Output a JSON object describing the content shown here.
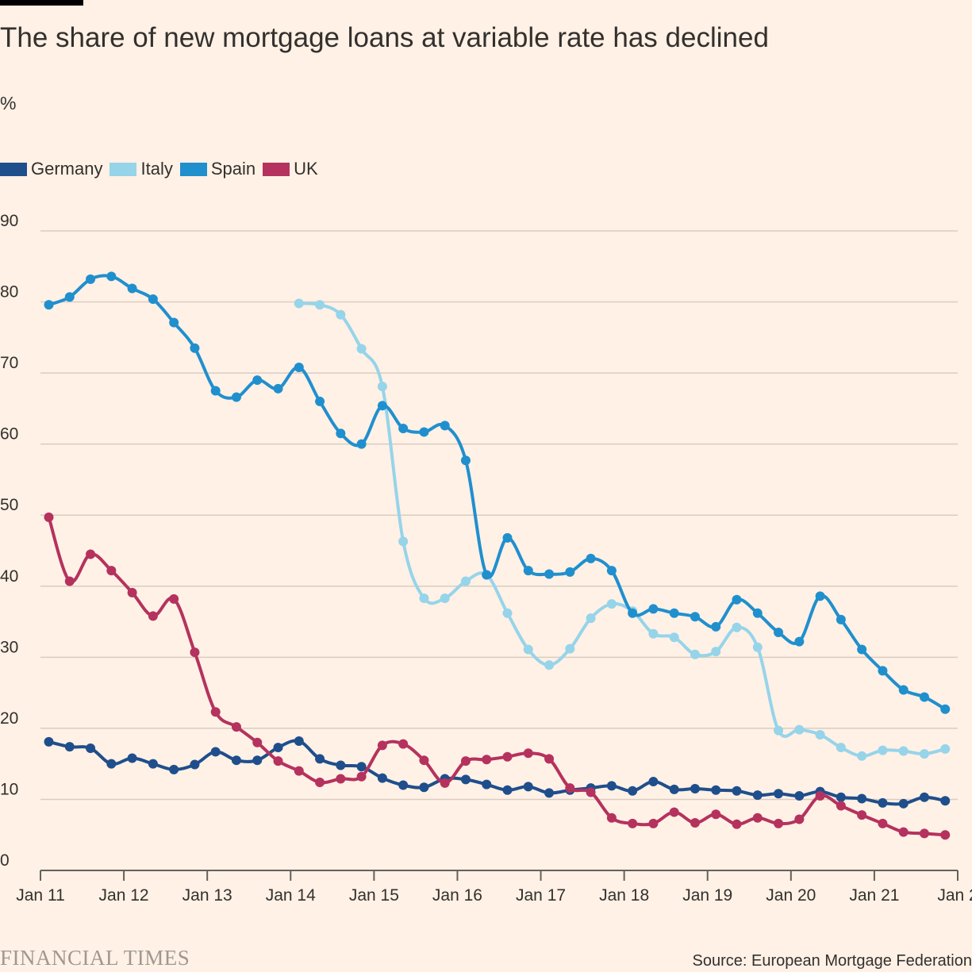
{
  "header": {
    "title": "The share of new mortgage loans at variable rate has declined",
    "unit": "%"
  },
  "footer": {
    "brand": "FINANCIAL TIMES",
    "source": "Source: European Mortgage Federation"
  },
  "colors": {
    "background": "#FFF1E5",
    "grid": "#D9CCC1",
    "axis": "#66605C",
    "text": "#33302E"
  },
  "chart_data": {
    "type": "line",
    "title": "The share of new mortgage loans at variable rate has declined",
    "ylabel": "%",
    "xlabel": "",
    "ylim": [
      0,
      90
    ],
    "yticks": [
      0,
      10,
      20,
      30,
      40,
      50,
      60,
      70,
      80,
      90
    ],
    "xlim": [
      2011.0,
      2022.0
    ],
    "xticks": [
      {
        "value": 2011,
        "label": "Jan 11"
      },
      {
        "value": 2012,
        "label": "Jan 12"
      },
      {
        "value": 2013,
        "label": "Jan 13"
      },
      {
        "value": 2014,
        "label": "Jan 14"
      },
      {
        "value": 2015,
        "label": "Jan 15"
      },
      {
        "value": 2016,
        "label": "Jan 16"
      },
      {
        "value": 2017,
        "label": "Jan 17"
      },
      {
        "value": 2018,
        "label": "Jan 18"
      },
      {
        "value": 2019,
        "label": "Jan 19"
      },
      {
        "value": 2020,
        "label": "Jan 20"
      },
      {
        "value": 2021,
        "label": "Jan 21"
      },
      {
        "value": 2022,
        "label": "Jan 2"
      }
    ],
    "grid": true,
    "legend": "top-left",
    "quarters": [
      "Q1 2011",
      "Q2 2011",
      "Q3 2011",
      "Q4 2011",
      "Q1 2012",
      "Q2 2012",
      "Q3 2012",
      "Q4 2012",
      "Q1 2013",
      "Q2 2013",
      "Q3 2013",
      "Q4 2013",
      "Q1 2014",
      "Q2 2014",
      "Q3 2014",
      "Q4 2014",
      "Q1 2015",
      "Q2 2015",
      "Q3 2015",
      "Q4 2015",
      "Q1 2016",
      "Q2 2016",
      "Q3 2016",
      "Q4 2016",
      "Q1 2017",
      "Q2 2017",
      "Q3 2017",
      "Q4 2017",
      "Q1 2018",
      "Q2 2018",
      "Q3 2018",
      "Q4 2018",
      "Q1 2019",
      "Q2 2019",
      "Q3 2019",
      "Q4 2019",
      "Q1 2020",
      "Q2 2020",
      "Q3 2020",
      "Q4 2020",
      "Q1 2021",
      "Q2 2021",
      "Q3 2021",
      "Q4 2021"
    ],
    "x": [
      2011.1,
      2011.35,
      2011.6,
      2011.85,
      2012.1,
      2012.35,
      2012.6,
      2012.85,
      2013.1,
      2013.35,
      2013.6,
      2013.85,
      2014.1,
      2014.35,
      2014.6,
      2014.85,
      2015.1,
      2015.35,
      2015.6,
      2015.85,
      2016.1,
      2016.35,
      2016.6,
      2016.85,
      2017.1,
      2017.35,
      2017.6,
      2017.85,
      2018.1,
      2018.35,
      2018.6,
      2018.85,
      2019.1,
      2019.35,
      2019.6,
      2019.85,
      2020.1,
      2020.35,
      2020.6,
      2020.85,
      2021.1,
      2021.35,
      2021.6,
      2021.85
    ],
    "series": [
      {
        "name": "Germany",
        "color": "#1F4E8C",
        "values": [
          18.1,
          17.4,
          17.2,
          15.0,
          15.8,
          15.0,
          14.2,
          14.9,
          16.7,
          15.5,
          15.5,
          17.3,
          18.2,
          15.7,
          14.8,
          14.6,
          13.0,
          12.0,
          11.7,
          12.9,
          12.8,
          12.1,
          11.3,
          11.8,
          10.9,
          11.3,
          11.6,
          11.9,
          11.2,
          12.5,
          11.4,
          11.5,
          11.3,
          11.2,
          10.6,
          10.8,
          10.5,
          11.1,
          10.3,
          10.1,
          9.5,
          9.4,
          10.3,
          9.8
        ]
      },
      {
        "name": "Italy",
        "color": "#96D4EA",
        "values": [
          null,
          null,
          null,
          null,
          null,
          null,
          null,
          null,
          null,
          null,
          null,
          null,
          79.8,
          79.6,
          78.2,
          73.4,
          68.1,
          46.3,
          38.3,
          38.3,
          40.7,
          41.6,
          36.2,
          31.1,
          28.9,
          31.2,
          35.5,
          37.5,
          36.5,
          33.3,
          32.8,
          30.4,
          30.8,
          34.2,
          31.4,
          19.7,
          19.8,
          19.1,
          17.3,
          16.1,
          16.9,
          16.8,
          16.4,
          17.1
        ]
      },
      {
        "name": "Spain",
        "color": "#208FCE",
        "values": [
          79.6,
          80.7,
          83.2,
          83.6,
          81.9,
          80.4,
          77.1,
          73.5,
          67.5,
          66.6,
          69.0,
          67.8,
          70.8,
          66.0,
          61.5,
          60.0,
          65.4,
          62.2,
          61.7,
          62.6,
          57.7,
          41.6,
          46.8,
          42.2,
          41.7,
          42.0,
          43.9,
          42.2,
          36.2,
          36.8,
          36.2,
          35.7,
          34.3,
          38.1,
          36.2,
          33.5,
          32.2,
          38.6,
          35.3,
          31.1,
          28.1,
          25.4,
          24.4,
          22.7
        ]
      },
      {
        "name": "UK",
        "color": "#B5325E",
        "values": [
          49.7,
          40.7,
          44.5,
          42.2,
          39.1,
          35.8,
          38.2,
          30.7,
          22.3,
          20.2,
          18.0,
          15.4,
          14.0,
          12.4,
          12.9,
          13.2,
          17.6,
          17.8,
          15.5,
          12.3,
          15.4,
          15.6,
          16.0,
          16.5,
          15.7,
          11.6,
          11.0,
          7.4,
          6.6,
          6.6,
          8.2,
          6.7,
          7.9,
          6.5,
          7.4,
          6.6,
          7.2,
          10.5,
          9.1,
          7.8,
          6.6,
          5.4,
          5.2,
          5.0
        ]
      }
    ]
  }
}
